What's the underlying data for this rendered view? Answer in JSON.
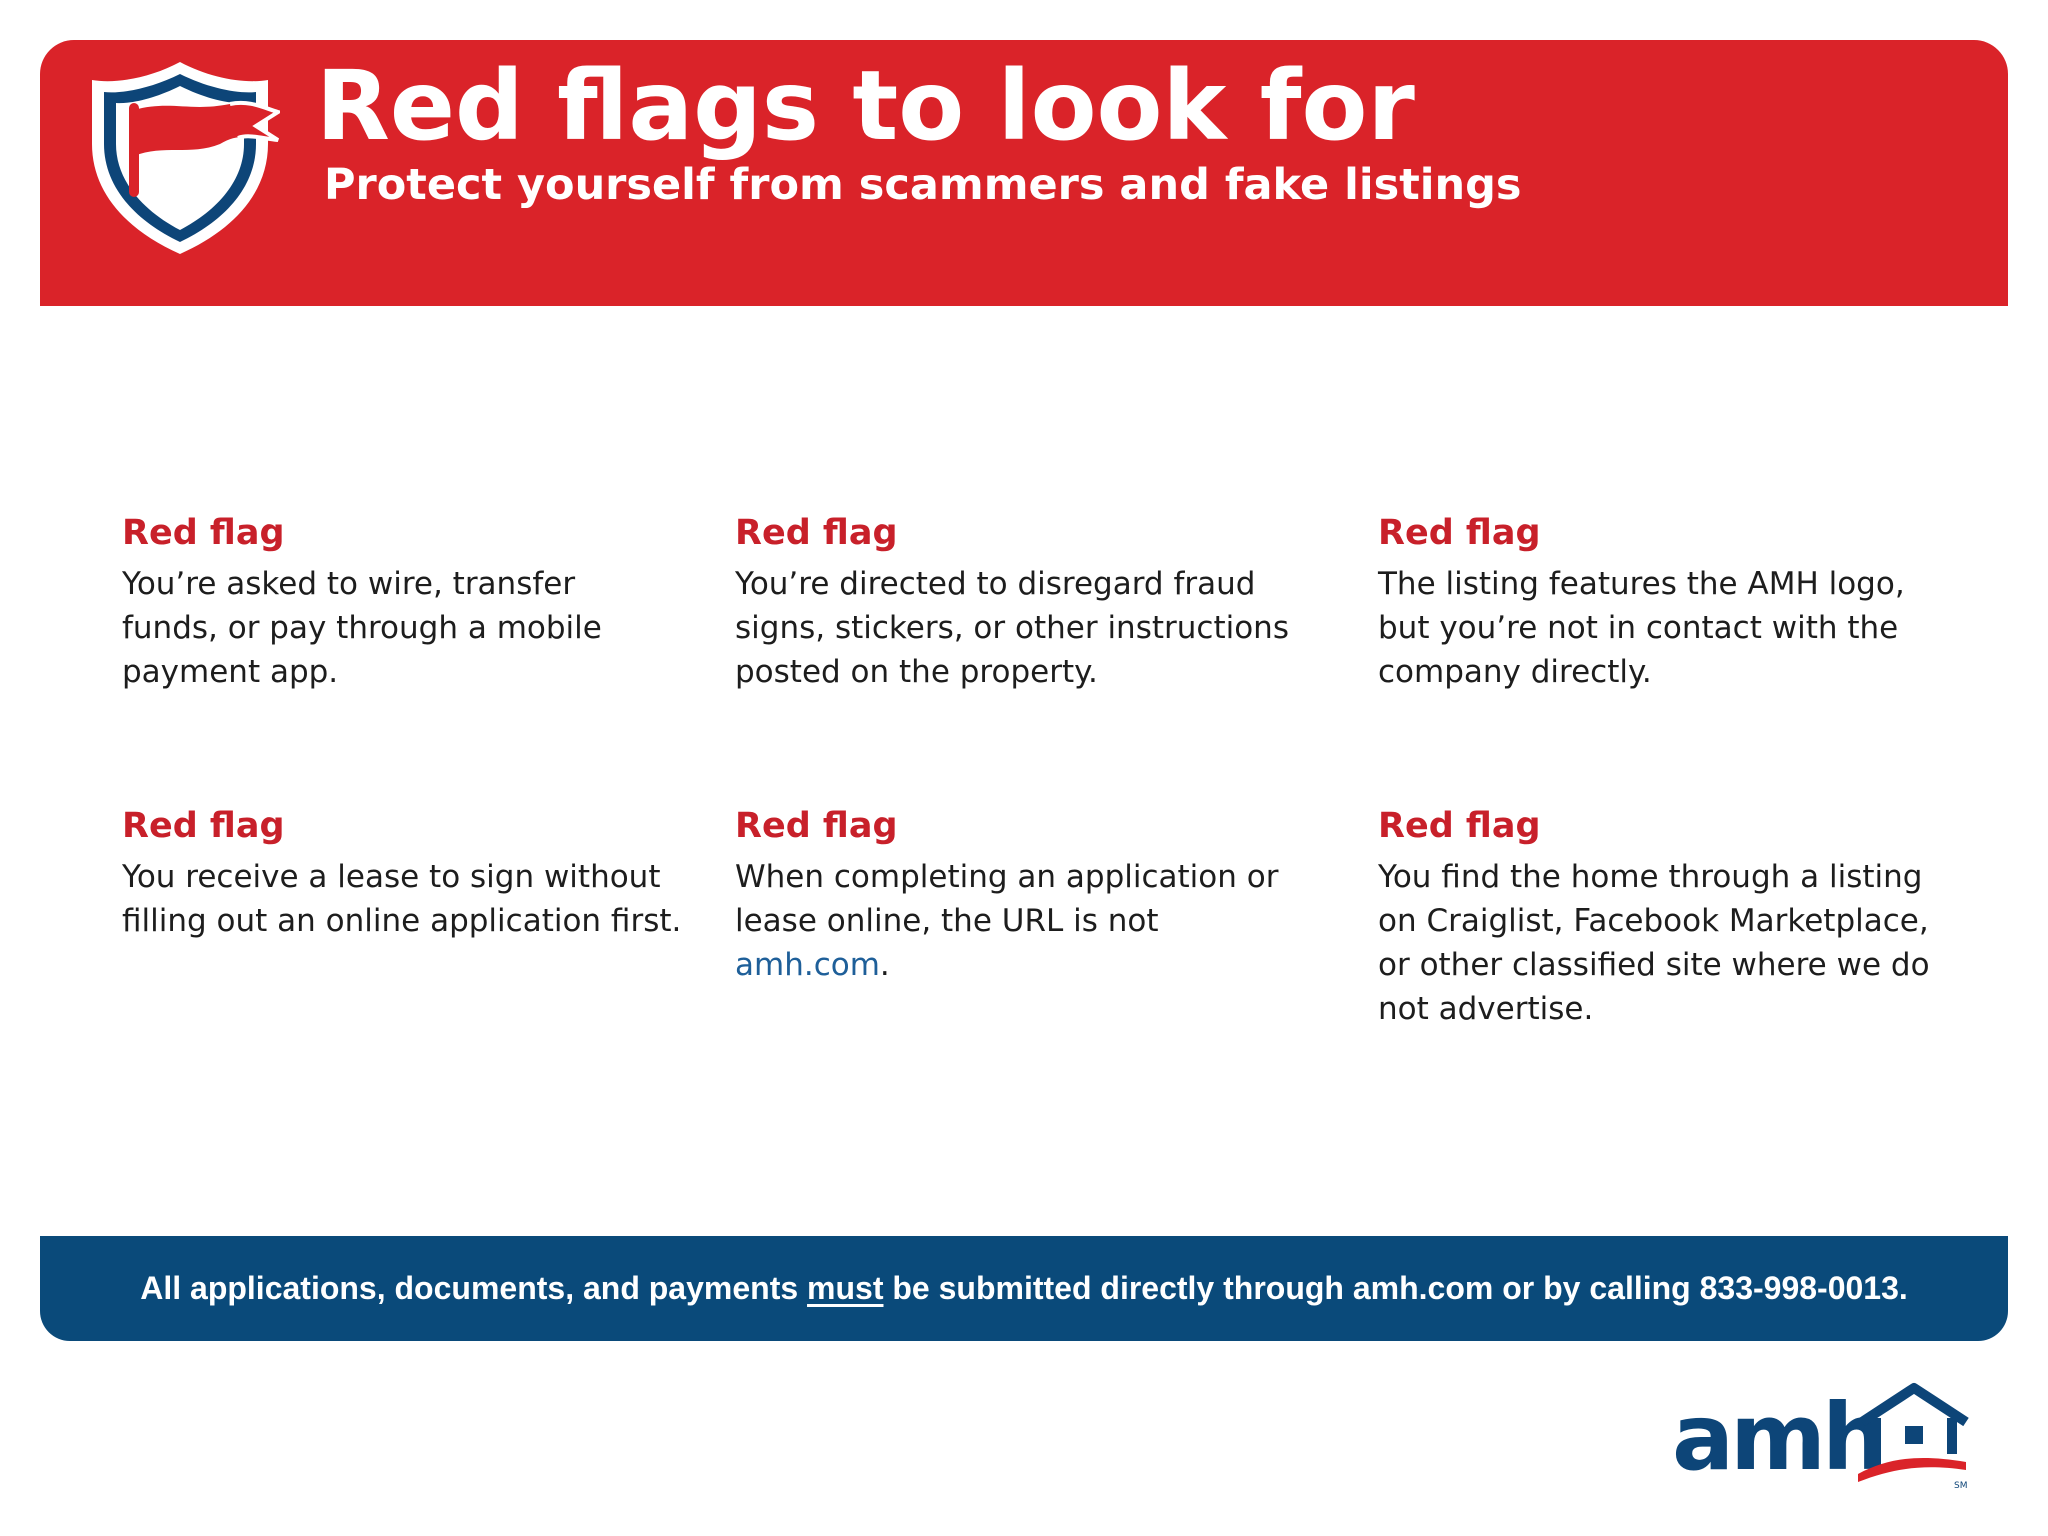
{
  "header": {
    "title": "Red flags to look for",
    "subtitle": "Protect yourself from scammers and fake listings",
    "icon": "shield-flag-icon"
  },
  "flags": [
    {
      "heading": "Red flag",
      "text": "You’re asked to wire, transfer funds, or pay through a mobile payment app."
    },
    {
      "heading": "Red flag",
      "text": "You’re directed to disregard fraud signs, stickers, or other instructions posted on the property."
    },
    {
      "heading": "Red flag",
      "text": "The listing features the AMH logo, but you’re not in contact with the company directly."
    },
    {
      "heading": "Red flag",
      "text": "You receive a lease to sign without filling out an online application first."
    },
    {
      "heading": "Red flag",
      "text_before": "When completing an application or lease online, the URL is not ",
      "link": "amh.com",
      "text_after": "."
    },
    {
      "heading": "Red flag",
      "text": "You find the home through a listing on Craiglist, Facebook Marketplace, or other classified site where we do not advertise."
    }
  ],
  "footer": {
    "text_before": "All applications, documents, and payments ",
    "emphasis": "must",
    "text_after": " be submitted directly through amh.com or by calling 833-998-0013."
  },
  "logo": {
    "text": "amh",
    "mark": "SM",
    "icon": "house-roof-icon"
  },
  "colors": {
    "brand_red": "#da2329",
    "heading_red": "#c8202a",
    "brand_navy": "#0a4a7a",
    "link_blue": "#1e5f99"
  }
}
